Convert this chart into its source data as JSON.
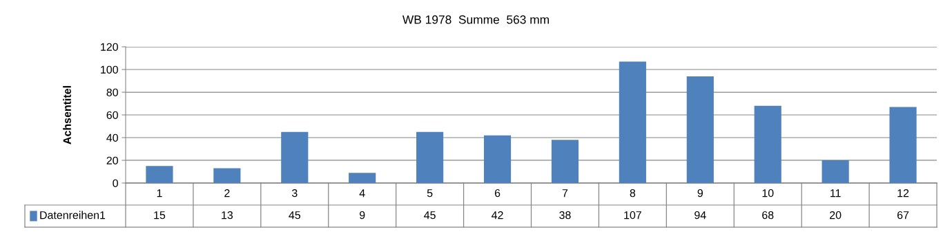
{
  "chart_data": {
    "type": "bar",
    "title": "WB 1978  Summe  563 mm",
    "ylabel": "Achsentitel",
    "categories": [
      "1",
      "2",
      "3",
      "4",
      "5",
      "6",
      "7",
      "8",
      "9",
      "10",
      "11",
      "12"
    ],
    "series": [
      {
        "name": "Datenreihen1",
        "color": "#4f81bd",
        "values": [
          15,
          13,
          45,
          9,
          45,
          42,
          38,
          107,
          94,
          68,
          20,
          67
        ]
      }
    ],
    "ylim": [
      0,
      120
    ],
    "yticks": [
      0,
      20,
      40,
      60,
      80,
      100,
      120
    ],
    "grid": "y",
    "data_labels": true
  }
}
